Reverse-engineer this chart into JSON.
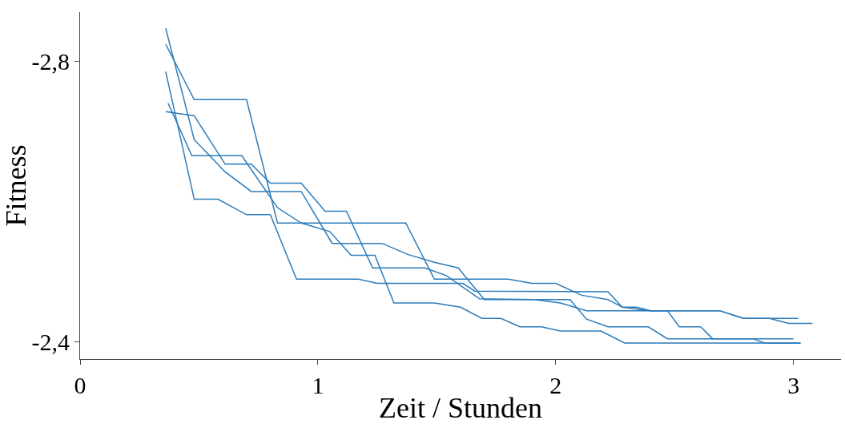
{
  "chart_data": {
    "type": "line",
    "xlabel": "Zeit / Stunden",
    "ylabel": "Fitness",
    "xlim": [
      0,
      3.2
    ],
    "xticks": [
      0,
      1,
      2,
      3
    ],
    "ylim": [
      -2.375,
      -2.87
    ],
    "yticks": [
      {
        "value": -2.8,
        "label": "-2,8"
      },
      {
        "value": -2.4,
        "label": "-2,4"
      }
    ],
    "marker": "none",
    "line_style": "solid",
    "series": [
      {
        "color": "#2b7bba",
        "x": [
          0.36,
          0.48,
          0.61,
          0.72,
          0.93,
          1.06,
          1.27,
          1.38,
          1.49,
          1.59,
          1.7,
          2.06,
          2.13,
          2.22,
          2.39,
          2.47,
          3.0
        ],
        "values": [
          -2.847,
          -2.688,
          -2.642,
          -2.614,
          -2.614,
          -2.54,
          -2.54,
          -2.524,
          -2.513,
          -2.505,
          -2.46,
          -2.46,
          -2.432,
          -2.421,
          -2.421,
          -2.404,
          -2.404
        ]
      },
      {
        "color": "#2b7bba",
        "x": [
          0.36,
          0.48,
          0.7,
          0.83,
          1.37,
          1.49,
          1.8,
          1.9,
          2.0,
          2.11,
          2.22,
          2.28,
          2.34,
          2.4,
          2.47,
          2.52,
          2.61,
          2.66,
          2.83,
          2.88,
          3.03
        ],
        "values": [
          -2.824,
          -2.745,
          -2.745,
          -2.569,
          -2.569,
          -2.489,
          -2.489,
          -2.483,
          -2.483,
          -2.466,
          -2.46,
          -2.449,
          -2.449,
          -2.444,
          -2.444,
          -2.421,
          -2.421,
          -2.404,
          -2.404,
          -2.398,
          -2.398
        ]
      },
      {
        "color": "#2b7bba",
        "x": [
          0.36,
          0.48,
          0.58,
          0.7,
          0.8,
          0.91,
          1.17,
          1.25,
          1.61,
          1.66,
          2.22,
          2.28,
          2.4,
          2.69,
          2.79,
          2.9,
          2.98,
          3.08
        ],
        "values": [
          -2.785,
          -2.603,
          -2.603,
          -2.581,
          -2.581,
          -2.489,
          -2.489,
          -2.483,
          -2.483,
          -2.472,
          -2.471,
          -2.449,
          -2.444,
          -2.444,
          -2.433,
          -2.433,
          -2.426,
          -2.426
        ]
      },
      {
        "color": "#2b7bba",
        "x": [
          0.36,
          0.48,
          0.61,
          0.72,
          0.8,
          0.93,
          1.03,
          1.12,
          1.23,
          1.45,
          1.54,
          1.68,
          1.91,
          2.02,
          2.13,
          2.69,
          2.79,
          3.02
        ],
        "values": [
          -2.728,
          -2.722,
          -2.653,
          -2.653,
          -2.626,
          -2.626,
          -2.586,
          -2.586,
          -2.505,
          -2.505,
          -2.494,
          -2.461,
          -2.46,
          -2.455,
          -2.444,
          -2.444,
          -2.433,
          -2.433
        ]
      },
      {
        "color": "#2b7bba",
        "x": [
          0.37,
          0.47,
          0.68,
          0.83,
          0.93,
          1.05,
          1.14,
          1.24,
          1.32,
          1.49,
          1.6,
          1.69,
          1.77,
          1.85,
          1.94,
          2.02,
          2.19,
          2.29,
          3.03
        ],
        "values": [
          -2.74,
          -2.665,
          -2.665,
          -2.591,
          -2.569,
          -2.557,
          -2.523,
          -2.523,
          -2.455,
          -2.455,
          -2.449,
          -2.433,
          -2.433,
          -2.421,
          -2.421,
          -2.415,
          -2.415,
          -2.398,
          -2.398
        ]
      }
    ]
  }
}
